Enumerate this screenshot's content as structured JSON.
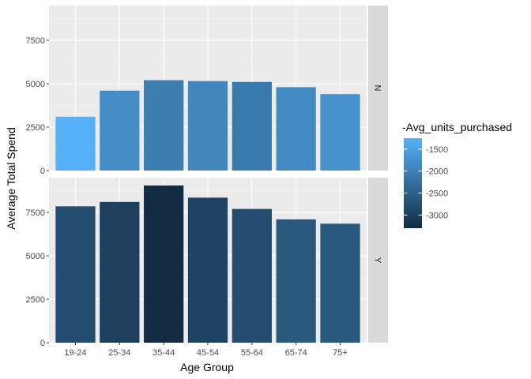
{
  "chart_data": {
    "type": "bar",
    "categories": [
      "19-24",
      "25-34",
      "35-44",
      "45-54",
      "55-64",
      "65-74",
      "75+"
    ],
    "xlabel": "Age Group",
    "ylabel": "Average Total Spend",
    "ylim": [
      0,
      9500
    ],
    "yticks": [
      0,
      2500,
      5000,
      7500
    ],
    "ytick_labels": [
      "0",
      "2500",
      "5000",
      "7500"
    ],
    "grid": true,
    "facets": [
      {
        "label": "N",
        "values": [
          3100,
          4600,
          5200,
          5150,
          5100,
          4800,
          4400
        ],
        "fill_values": [
          -1250,
          -1800,
          -2050,
          -1900,
          -2100,
          -1850,
          -1750
        ]
      },
      {
        "label": "Y",
        "values": [
          7850,
          8100,
          9050,
          8350,
          7700,
          7100,
          6850
        ],
        "fill_values": [
          -2800,
          -3000,
          -3300,
          -2950,
          -2800,
          -2600,
          -2600
        ]
      }
    ],
    "legend": {
      "title": "-Avg_units_purchased",
      "position": "right",
      "range": [
        -3300,
        -1250
      ],
      "ticks": [
        -1500,
        -2000,
        -2500,
        -3000
      ],
      "tick_labels": [
        "-1500",
        "-2000",
        "-2500",
        "-3000"
      ],
      "color_high": "#56B1F7",
      "color_low": "#132B43"
    },
    "colors": {
      "panel_bg": "#EBEBEB",
      "strip_bg": "#D9D9D9",
      "grid_major": "#FFFFFF"
    }
  }
}
